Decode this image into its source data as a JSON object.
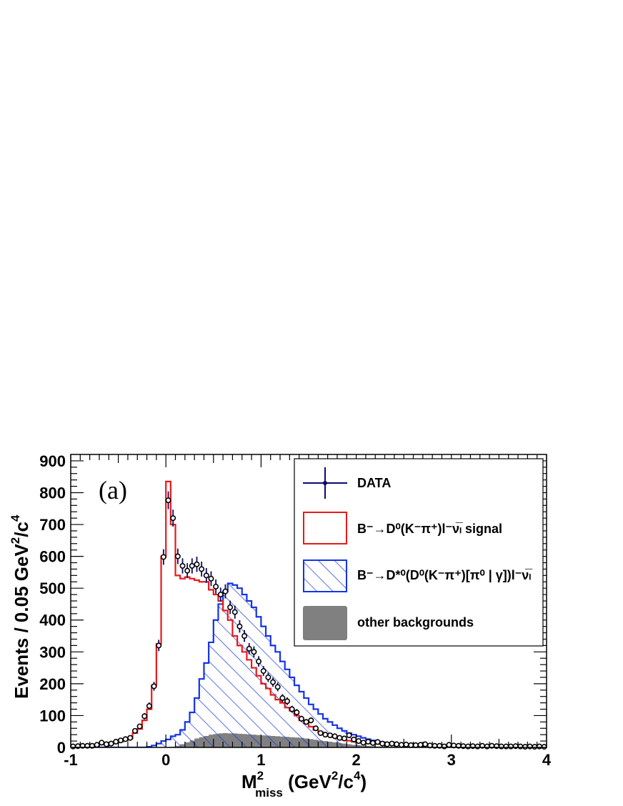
{
  "panel_label": "(a)",
  "colors": {
    "data": "#0b0b6e",
    "signal": "#e8191a",
    "dstar": "#1433e6",
    "other": "#808080"
  },
  "chart_data": {
    "type": "histogram",
    "xlabel": {
      "main": "M",
      "sup": "2",
      "sub": "miss",
      "unit_open": " (GeV",
      "unit_sup1": "2",
      "unit_mid": "/c",
      "unit_sup2": "4",
      "unit_close": ")"
    },
    "ylabel": {
      "main": "Events / 0.05 GeV",
      "sup1": "2",
      "mid": "/c",
      "sup2": "4"
    },
    "xlim": [
      -1,
      4
    ],
    "ylim": [
      0,
      920
    ],
    "bin_width": 0.05,
    "x_ticks": [
      "-1",
      "0",
      "1",
      "2",
      "3",
      "4"
    ],
    "y_ticks": [
      "0",
      "100",
      "200",
      "300",
      "400",
      "500",
      "600",
      "700",
      "800",
      "900"
    ],
    "legend": {
      "placement": "top-right",
      "entries": [
        {
          "key": "data",
          "label": "DATA"
        },
        {
          "key": "signal",
          "label": "B⁻→D⁰(K⁻π⁺)l⁻ν̅ₗ signal"
        },
        {
          "key": "dstar",
          "label": "B⁻→D*⁰(D⁰(K⁻π⁺)[π⁰ | γ])l⁻ν̅ₗ"
        },
        {
          "key": "other",
          "label": "other backgrounds"
        }
      ]
    },
    "series": [
      {
        "name": "signal",
        "style": "step-line",
        "values": [
          2,
          3,
          3,
          4,
          5,
          6,
          9,
          10,
          11,
          14,
          18,
          22,
          28,
          45,
          58,
          85,
          120,
          195,
          325,
          600,
          835,
          700,
          540,
          530,
          535,
          530,
          525,
          520,
          520,
          495,
          480,
          460,
          430,
          400,
          350,
          320,
          300,
          275,
          250,
          225,
          200,
          185,
          165,
          150,
          140,
          125,
          115,
          100,
          85,
          75,
          65,
          55,
          48,
          42,
          36,
          32,
          28,
          24,
          21,
          18,
          16,
          14,
          13,
          12,
          11,
          10,
          9,
          8,
          8,
          7,
          7,
          6,
          6,
          6,
          5,
          5,
          5,
          5,
          4,
          4,
          4,
          4,
          4,
          4,
          4,
          3,
          3,
          3,
          3,
          3,
          3,
          3,
          3,
          3,
          3,
          3,
          3,
          3,
          3,
          3
        ]
      },
      {
        "name": "B→D* background",
        "style": "hatched",
        "values": [
          0,
          0,
          0,
          0,
          0,
          0,
          0,
          0,
          0,
          0,
          0,
          0,
          0,
          0,
          0,
          0,
          2,
          6,
          12,
          20,
          25,
          35,
          40,
          55,
          80,
          110,
          155,
          215,
          265,
          330,
          400,
          450,
          490,
          515,
          510,
          500,
          480,
          460,
          440,
          410,
          380,
          350,
          320,
          300,
          270,
          245,
          220,
          195,
          175,
          155,
          135,
          120,
          105,
          90,
          80,
          70,
          60,
          52,
          45,
          40,
          35,
          30,
          26,
          22,
          18,
          16,
          14,
          12,
          11,
          10,
          9,
          8,
          8,
          7,
          7,
          6,
          6,
          6,
          5,
          5,
          5,
          5,
          4,
          4,
          4,
          4,
          4,
          4,
          4,
          3,
          3,
          3,
          3,
          3,
          3,
          3,
          3,
          3,
          3,
          3
        ]
      },
      {
        "name": "other backgrounds",
        "style": "filled",
        "values": [
          0,
          0,
          0,
          0,
          0,
          0,
          0,
          0,
          0,
          0,
          0,
          0,
          0,
          0,
          0,
          0,
          0,
          0,
          0,
          0,
          0,
          2,
          5,
          10,
          16,
          22,
          28,
          32,
          36,
          40,
          42,
          44,
          45,
          44,
          44,
          43,
          42,
          41,
          40,
          39,
          38,
          37,
          36,
          35,
          34,
          33,
          32,
          31,
          30,
          28,
          26,
          24,
          22,
          20,
          18,
          16,
          14,
          12,
          10,
          8,
          7,
          6,
          5,
          4,
          3,
          3,
          2,
          2,
          2,
          1,
          1,
          1,
          1,
          1,
          1,
          1,
          1,
          1,
          1,
          1,
          1,
          1,
          1,
          1,
          1,
          1,
          1,
          1,
          1,
          1,
          1,
          1,
          1,
          1,
          1,
          1,
          1,
          1,
          1,
          1
        ]
      },
      {
        "name": "DATA",
        "style": "points",
        "x": [
          -0.975,
          -0.925,
          -0.875,
          -0.825,
          -0.775,
          -0.725,
          -0.675,
          -0.625,
          -0.575,
          -0.525,
          -0.475,
          -0.425,
          -0.375,
          -0.325,
          -0.275,
          -0.225,
          -0.175,
          -0.125,
          -0.075,
          -0.025,
          0.025,
          0.075,
          0.125,
          0.175,
          0.225,
          0.275,
          0.325,
          0.375,
          0.425,
          0.475,
          0.525,
          0.575,
          0.625,
          0.675,
          0.725,
          0.775,
          0.825,
          0.875,
          0.925,
          0.975,
          1.025,
          1.075,
          1.125,
          1.175,
          1.225,
          1.275,
          1.325,
          1.375,
          1.425,
          1.475,
          1.525,
          1.575,
          1.625,
          1.675,
          1.725,
          1.775,
          1.825,
          1.875,
          1.925,
          1.975,
          2.025,
          2.075,
          2.125,
          2.175,
          2.225,
          2.275,
          2.325,
          2.375,
          2.425,
          2.475,
          2.525,
          2.575,
          2.625,
          2.675,
          2.725,
          2.775,
          2.825,
          2.875,
          2.925,
          2.975,
          3.025,
          3.075,
          3.125,
          3.175,
          3.225,
          3.275,
          3.325,
          3.375,
          3.425,
          3.475,
          3.525,
          3.575,
          3.625,
          3.675,
          3.725,
          3.775,
          3.825,
          3.875,
          3.925,
          3.975
        ],
        "y": [
          3,
          4,
          5,
          5,
          5,
          8,
          15,
          10,
          12,
          18,
          22,
          26,
          30,
          52,
          66,
          98,
          130,
          192,
          320,
          598,
          776,
          720,
          600,
          570,
          555,
          570,
          575,
          560,
          540,
          530,
          505,
          480,
          490,
          440,
          425,
          380,
          350,
          310,
          300,
          270,
          240,
          220,
          205,
          190,
          155,
          145,
          120,
          110,
          90,
          80,
          85,
          60,
          45,
          40,
          38,
          35,
          30,
          28,
          38,
          25,
          20,
          15,
          18,
          14,
          17,
          12,
          10,
          12,
          10,
          8,
          9,
          7,
          7,
          8,
          10,
          6,
          5,
          5,
          3,
          8,
          6,
          5,
          4,
          3,
          4,
          3,
          5,
          3,
          5,
          4,
          3,
          3,
          3,
          4,
          3,
          2,
          3,
          2,
          3,
          2
        ]
      }
    ]
  }
}
